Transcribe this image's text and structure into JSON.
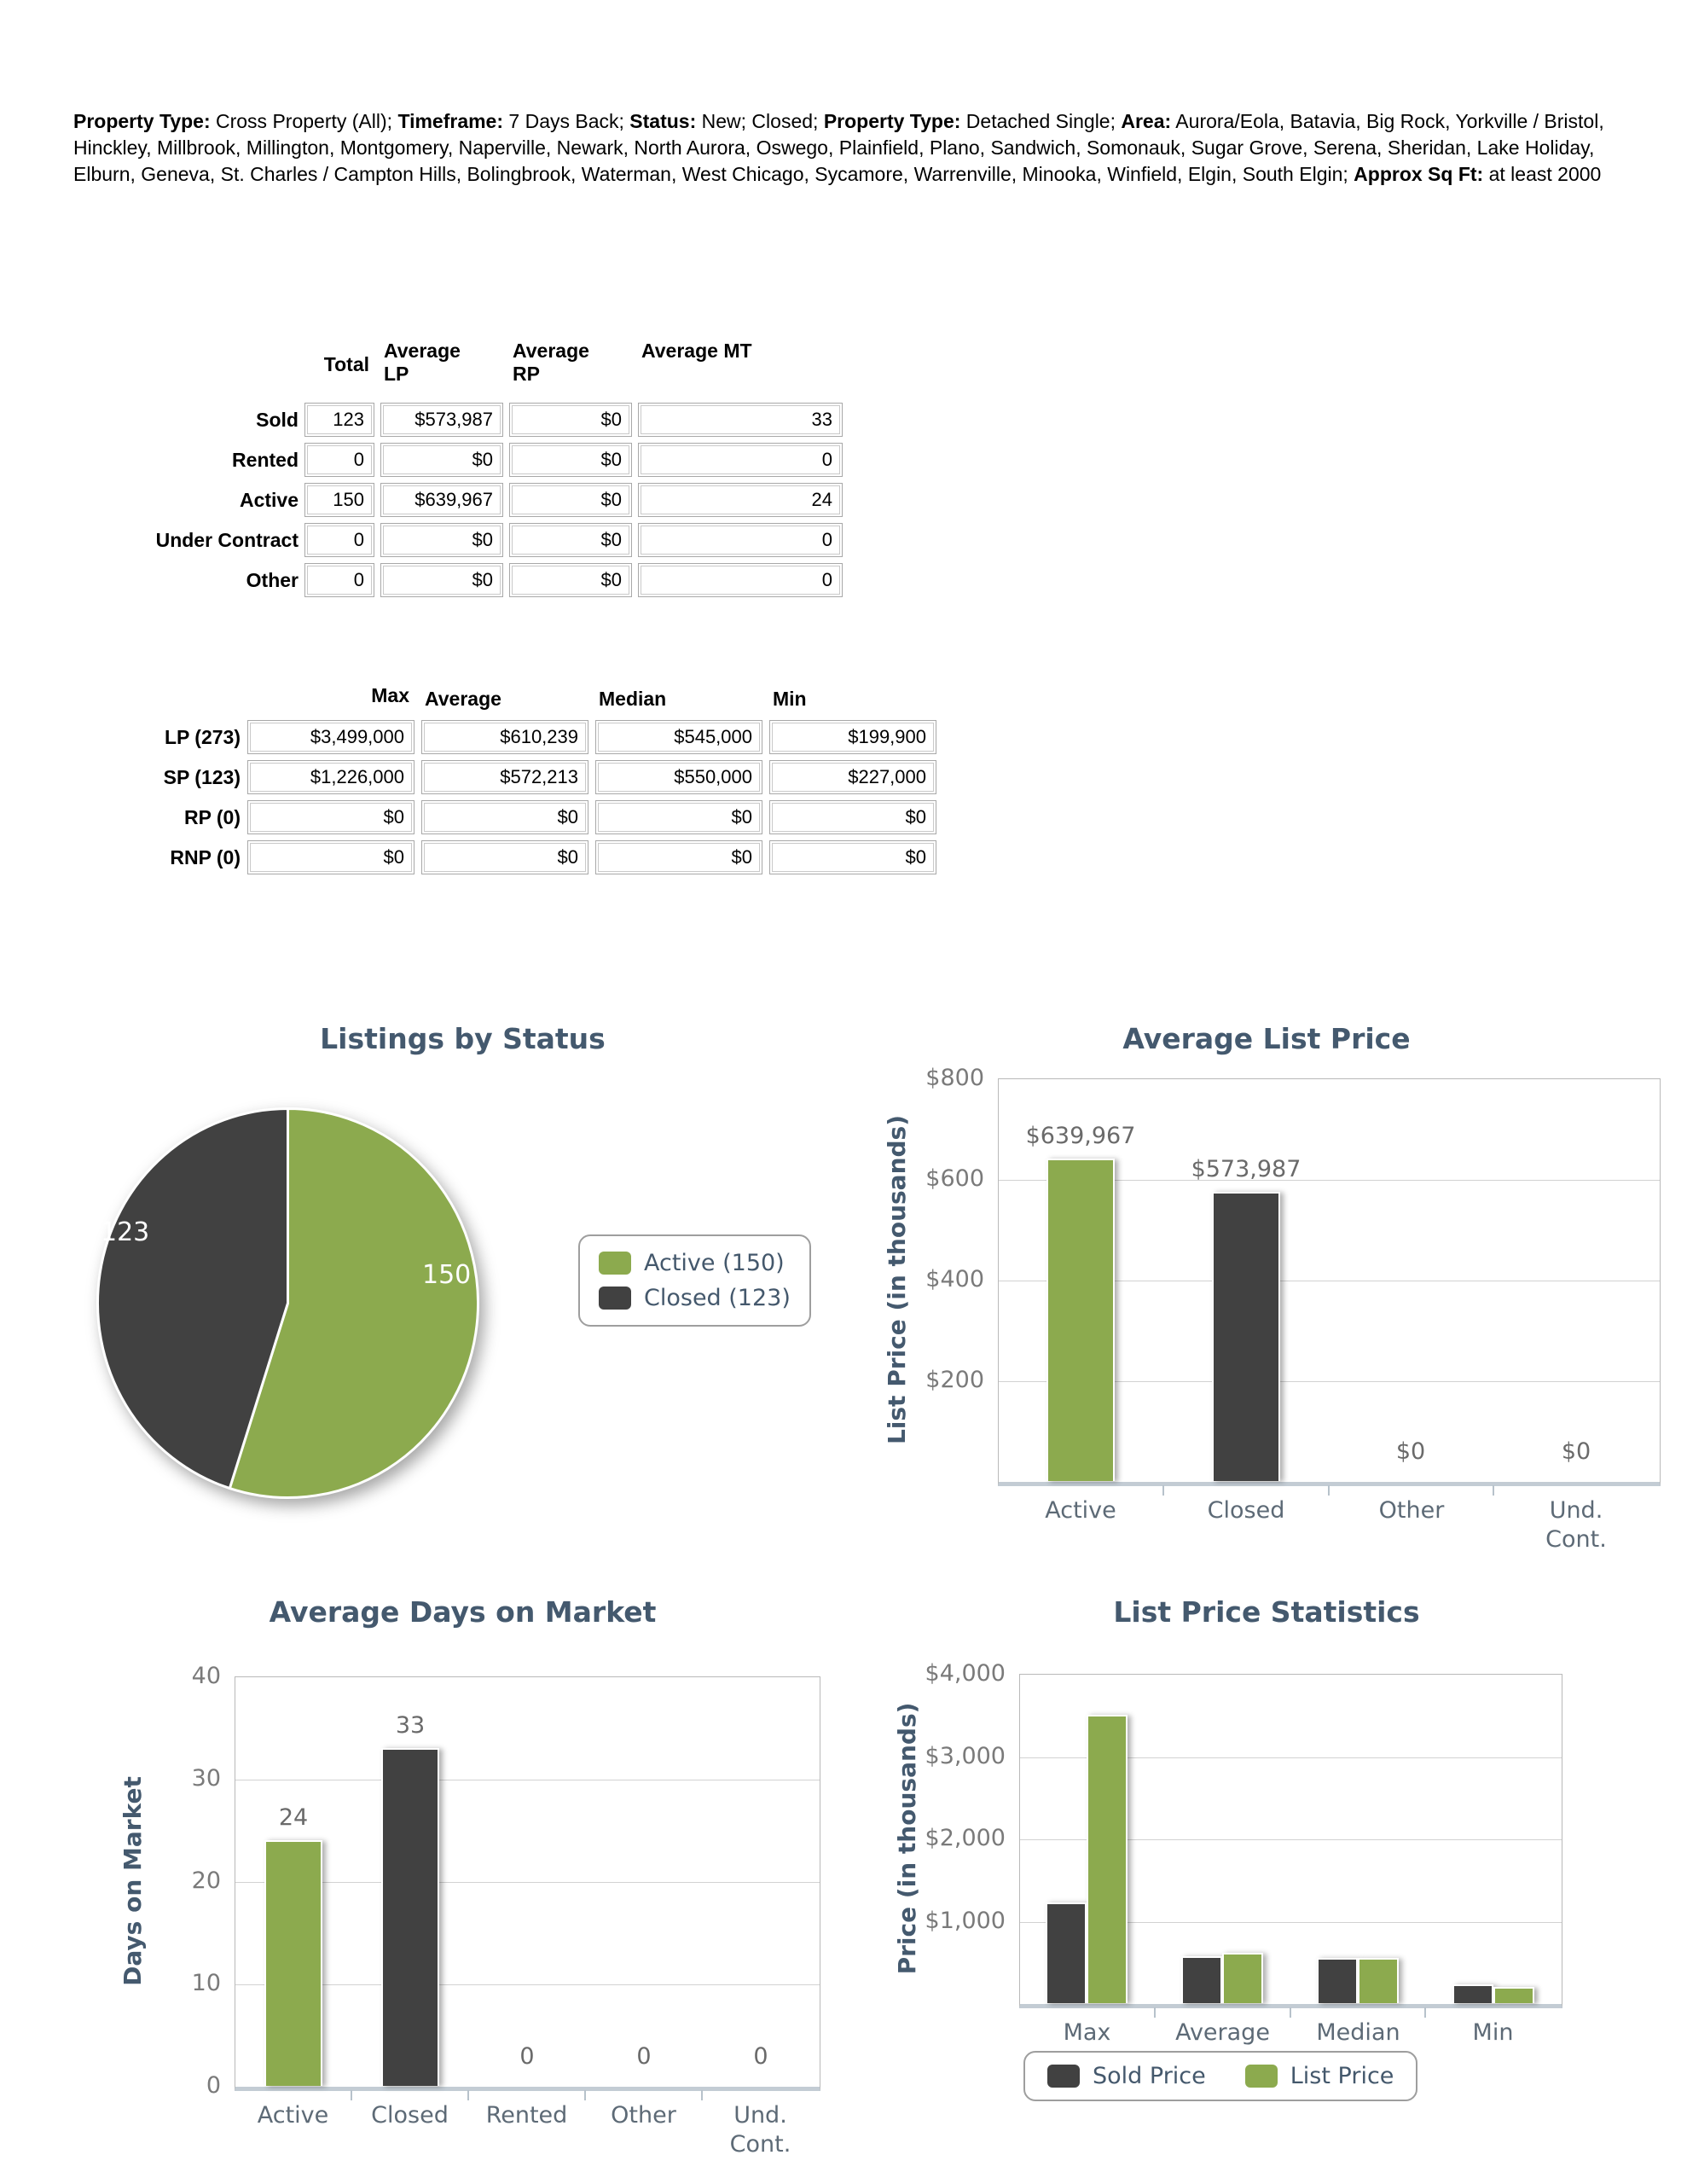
{
  "colors": {
    "green": "#8caa4e",
    "dark": "#414141",
    "title": "#44596e",
    "tick": "#7a7a7a",
    "category": "#5d6a76",
    "grid": "#d2d2d2",
    "plot_border": "#b9b9b9",
    "baseline": "#c3ccd4",
    "legend_text": "#44586c"
  },
  "header": {
    "segments": [
      {
        "label": "Property Type:",
        "value": " Cross Property (All); "
      },
      {
        "label": "Timeframe:",
        "value": " 7 Days Back; "
      },
      {
        "label": "Status:",
        "value": " New; Closed; "
      },
      {
        "label": "Property Type:",
        "value": " Detached Single; "
      },
      {
        "label": "Area:",
        "value": " Aurora/Eola, Batavia, Big Rock, Yorkville / Bristol, Hinckley, Millbrook, Millington, Montgomery, Naperville, Newark, North Aurora, Oswego, Plainfield, Plano, Sandwich, Somonauk, Sugar Grove, Serena, Sheridan, Lake Holiday, Elburn, Geneva, St. Charles / Campton Hills, Bolingbrook, Waterman, West Chicago, Sycamore, Warrenville, Minooka, Winfield, Elgin, South Elgin; "
      },
      {
        "label": "Approx Sq Ft:",
        "value": " at least 2000"
      }
    ]
  },
  "status_table": {
    "columns": [
      "Total",
      "Average\nLP",
      "Average\nRP",
      "Average MT"
    ],
    "rows": [
      {
        "label": "Sold",
        "values": [
          "123",
          "$573,987",
          "$0",
          "33"
        ]
      },
      {
        "label": "Rented",
        "values": [
          "0",
          "$0",
          "$0",
          "0"
        ]
      },
      {
        "label": "Active",
        "values": [
          "150",
          "$639,967",
          "$0",
          "24"
        ]
      },
      {
        "label": "Under Contract",
        "values": [
          "0",
          "$0",
          "$0",
          "0"
        ]
      },
      {
        "label": "Other",
        "values": [
          "0",
          "$0",
          "$0",
          "0"
        ]
      }
    ]
  },
  "price_table": {
    "columns": [
      "Max",
      "Average",
      "Median",
      "Min"
    ],
    "rows": [
      {
        "label": "LP (273)",
        "values": [
          "$3,499,000",
          "$610,239",
          "$545,000",
          "$199,900"
        ]
      },
      {
        "label": "SP (123)",
        "values": [
          "$1,226,000",
          "$572,213",
          "$550,000",
          "$227,000"
        ]
      },
      {
        "label": "RP (0)",
        "values": [
          "$0",
          "$0",
          "$0",
          "$0"
        ]
      },
      {
        "label": "RNP (0)",
        "values": [
          "$0",
          "$0",
          "$0",
          "$0"
        ]
      }
    ]
  },
  "chart_data": [
    {
      "type": "pie",
      "title": "Listings by Status",
      "slices": [
        {
          "label": "Active",
          "value": 150,
          "color": "#8caa4e",
          "legend": "Active (150)",
          "data_label": "150"
        },
        {
          "label": "Closed",
          "value": 123,
          "color": "#414141",
          "legend": "Closed (123)",
          "data_label": "123"
        }
      ],
      "legend_position": "right"
    },
    {
      "type": "bar",
      "title": "Average List Price",
      "ylabel": "List Price (in thousands)",
      "categories": [
        "Active",
        "Closed",
        "Other",
        "Und.\nCont."
      ],
      "values": [
        639.967,
        573.987,
        0,
        0
      ],
      "bar_labels": [
        "$639,967",
        "$573,987",
        "$0",
        "$0"
      ],
      "bar_colors": [
        "#8caa4e",
        "#414141",
        null,
        null
      ],
      "ylim": [
        0,
        800
      ],
      "yticks": [
        {
          "v": 800,
          "t": "$800"
        },
        {
          "v": 600,
          "t": "$600"
        },
        {
          "v": 400,
          "t": "$400"
        },
        {
          "v": 200,
          "t": "$200"
        }
      ],
      "grid": true
    },
    {
      "type": "bar",
      "title": "Average Days on Market",
      "ylabel": "Days on Market",
      "categories": [
        "Active",
        "Closed",
        "Rented",
        "Other",
        "Und.\nCont."
      ],
      "values": [
        24,
        33,
        0,
        0,
        0
      ],
      "bar_labels": [
        "24",
        "33",
        "0",
        "0",
        "0"
      ],
      "bar_colors": [
        "#8caa4e",
        "#414141",
        null,
        null,
        null
      ],
      "ylim": [
        0,
        40
      ],
      "yticks": [
        {
          "v": 40,
          "t": "40"
        },
        {
          "v": 30,
          "t": "30"
        },
        {
          "v": 20,
          "t": "20"
        },
        {
          "v": 10,
          "t": "10"
        },
        {
          "v": 0,
          "t": "0"
        }
      ],
      "grid": true
    },
    {
      "type": "grouped_bar",
      "title": "List Price Statistics",
      "ylabel": "Price (in thousands)",
      "categories": [
        "Max",
        "Average",
        "Median",
        "Min"
      ],
      "series": [
        {
          "name": "Sold Price",
          "color": "#414141",
          "values": [
            1226,
            572,
            550,
            227
          ]
        },
        {
          "name": "List Price",
          "color": "#8caa4e",
          "values": [
            3499,
            610,
            545,
            200
          ]
        }
      ],
      "ylim": [
        0,
        4000
      ],
      "yticks": [
        {
          "v": 4000,
          "t": "$4,000"
        },
        {
          "v": 3000,
          "t": "$3,000"
        },
        {
          "v": 2000,
          "t": "$2,000"
        },
        {
          "v": 1000,
          "t": "$1,000"
        }
      ],
      "legend_position": "bottom",
      "grid": true
    }
  ]
}
